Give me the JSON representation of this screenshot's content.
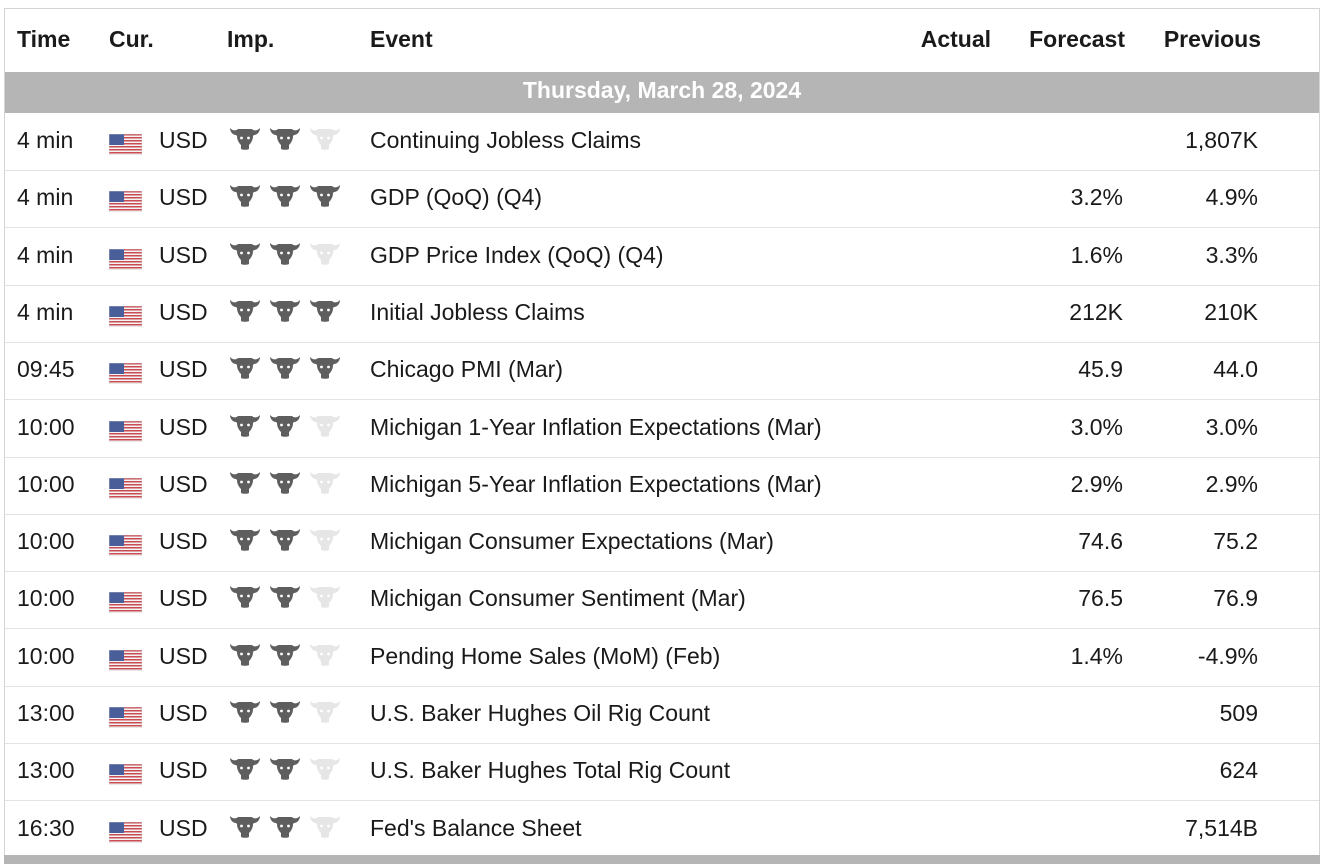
{
  "header": {
    "time": "Time",
    "currency": "Cur.",
    "importance": "Imp.",
    "event": "Event",
    "actual": "Actual",
    "forecast": "Forecast",
    "previous": "Previous"
  },
  "date_label": "Thursday, March 28, 2024",
  "colors": {
    "bull_active": "#5e5e5e",
    "bull_inactive": "#e6e6e6",
    "band": "#b5b5b5"
  },
  "rows": [
    {
      "time": "4 min",
      "currency": "USD",
      "importance": 2,
      "event": "Continuing Jobless Claims",
      "actual": "",
      "forecast": "",
      "previous": "1,807K"
    },
    {
      "time": "4 min",
      "currency": "USD",
      "importance": 3,
      "event": "GDP (QoQ) (Q4)",
      "actual": "",
      "forecast": "3.2%",
      "previous": "4.9%"
    },
    {
      "time": "4 min",
      "currency": "USD",
      "importance": 2,
      "event": "GDP Price Index (QoQ) (Q4)",
      "actual": "",
      "forecast": "1.6%",
      "previous": "3.3%"
    },
    {
      "time": "4 min",
      "currency": "USD",
      "importance": 3,
      "event": "Initial Jobless Claims",
      "actual": "",
      "forecast": "212K",
      "previous": "210K"
    },
    {
      "time": "09:45",
      "currency": "USD",
      "importance": 3,
      "event": "Chicago PMI (Mar)",
      "actual": "",
      "forecast": "45.9",
      "previous": "44.0"
    },
    {
      "time": "10:00",
      "currency": "USD",
      "importance": 2,
      "event": "Michigan 1-Year Inflation Expectations (Mar)",
      "actual": "",
      "forecast": "3.0%",
      "previous": "3.0%"
    },
    {
      "time": "10:00",
      "currency": "USD",
      "importance": 2,
      "event": "Michigan 5-Year Inflation Expectations (Mar)",
      "actual": "",
      "forecast": "2.9%",
      "previous": "2.9%"
    },
    {
      "time": "10:00",
      "currency": "USD",
      "importance": 2,
      "event": "Michigan Consumer Expectations (Mar)",
      "actual": "",
      "forecast": "74.6",
      "previous": "75.2"
    },
    {
      "time": "10:00",
      "currency": "USD",
      "importance": 2,
      "event": "Michigan Consumer Sentiment (Mar)",
      "actual": "",
      "forecast": "76.5",
      "previous": "76.9"
    },
    {
      "time": "10:00",
      "currency": "USD",
      "importance": 2,
      "event": "Pending Home Sales (MoM) (Feb)",
      "actual": "",
      "forecast": "1.4%",
      "previous": "-4.9%"
    },
    {
      "time": "13:00",
      "currency": "USD",
      "importance": 2,
      "event": "U.S. Baker Hughes Oil Rig Count",
      "actual": "",
      "forecast": "",
      "previous": "509"
    },
    {
      "time": "13:00",
      "currency": "USD",
      "importance": 2,
      "event": "U.S. Baker Hughes Total Rig Count",
      "actual": "",
      "forecast": "",
      "previous": "624"
    },
    {
      "time": "16:30",
      "currency": "USD",
      "importance": 2,
      "event": "Fed's Balance Sheet",
      "actual": "",
      "forecast": "",
      "previous": "7,514B"
    }
  ]
}
